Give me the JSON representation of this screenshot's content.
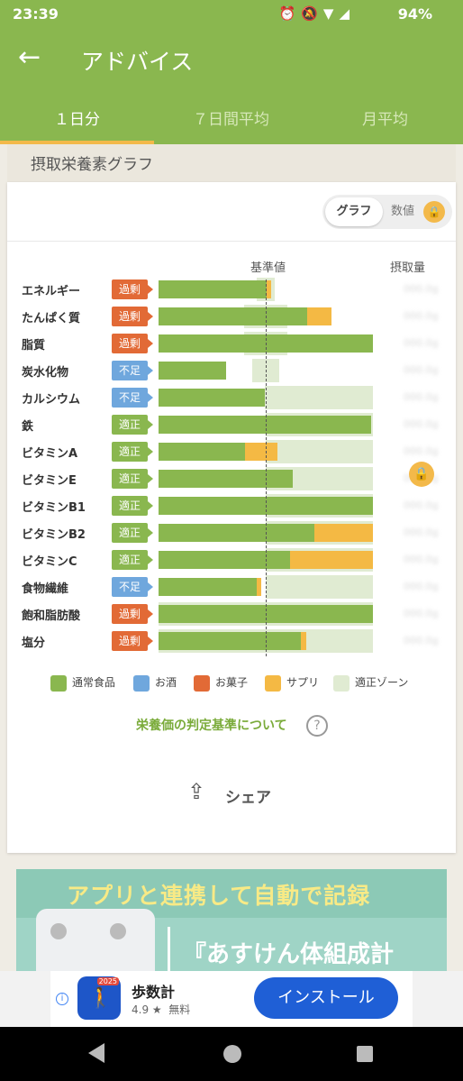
{
  "status_bar": {
    "time": "23:39",
    "battery": "94%",
    "icons": [
      "alarm-icon",
      "mute-icon",
      "wifi-icon",
      "signal-icon"
    ]
  },
  "app_bar": {
    "title": "アドバイス",
    "back_icon": "arrow-left-icon"
  },
  "tabs": [
    {
      "label": "１日分",
      "active": true
    },
    {
      "label": "７日間平均",
      "active": false
    },
    {
      "label": "月平均",
      "active": false
    }
  ],
  "section": {
    "title": "摂取栄養素グラフ"
  },
  "toggle": {
    "graph_label": "グラフ",
    "value_label": "数値",
    "lock_icon": "lock-icon"
  },
  "chart_data": {
    "type": "bar",
    "orientation": "horizontal",
    "stacked": true,
    "reference_line_label": "基準値",
    "amount_column_label": "摂取量",
    "units": "percent of reference value (estimated)",
    "categories": [
      "エネルギー",
      "たんぱく質",
      "脂質",
      "炭水化物",
      "カルシウム",
      "鉄",
      "ビタミンA",
      "ビタミンE",
      "ビタミンB1",
      "ビタミンB2",
      "ビタミンC",
      "食物繊維",
      "飽和脂肪酸",
      "塩分"
    ],
    "judgements": [
      "過剰",
      "過剰",
      "過剰",
      "不足",
      "不足",
      "適正",
      "適正",
      "適正",
      "適正",
      "適正",
      "適正",
      "不足",
      "過剰",
      "過剰"
    ],
    "series": [
      {
        "name": "通常食品",
        "values": [
          101,
          139,
          200,
          63,
          99,
          198,
          81,
          125,
          200,
          145,
          123,
          92,
          200,
          133
        ]
      },
      {
        "name": "サプリ",
        "values": [
          4,
          22,
          0,
          0,
          0,
          0,
          30,
          0,
          0,
          55,
          77,
          4,
          0,
          5
        ]
      },
      {
        "name": "適正ゾーン",
        "values": [
          [
            92,
            108
          ],
          [
            80,
            120
          ],
          [
            80,
            120
          ],
          [
            87,
            113
          ],
          [
            99,
            200
          ],
          [
            100,
            200
          ],
          [
            100,
            200
          ],
          [
            100,
            200
          ],
          [
            100,
            200
          ],
          [
            100,
            200
          ],
          [
            100,
            200
          ],
          [
            100,
            200
          ],
          [
            0,
            200
          ],
          [
            0,
            200
          ]
        ]
      }
    ],
    "xlim": [
      0,
      200
    ]
  },
  "legend": [
    {
      "label": "通常食品",
      "color": "#8ab74f"
    },
    {
      "label": "お酒",
      "color": "#6fa7dd"
    },
    {
      "label": "お菓子",
      "color": "#e26a36"
    },
    {
      "label": "サプリ",
      "color": "#f4b944"
    },
    {
      "label": "適正ゾーン",
      "color": "#e0ebd2"
    }
  ],
  "criteria_link": "栄養価の判定基準について",
  "share_label": "シェア",
  "banner": {
    "headline": "アプリと連携して自動で記録",
    "subtitle": "『あすけん体組成計"
  },
  "ad": {
    "app_name": "歩数計",
    "rating": "4.9 ★",
    "price": "無料",
    "install_label": "インストール",
    "badge_year": "2025"
  }
}
